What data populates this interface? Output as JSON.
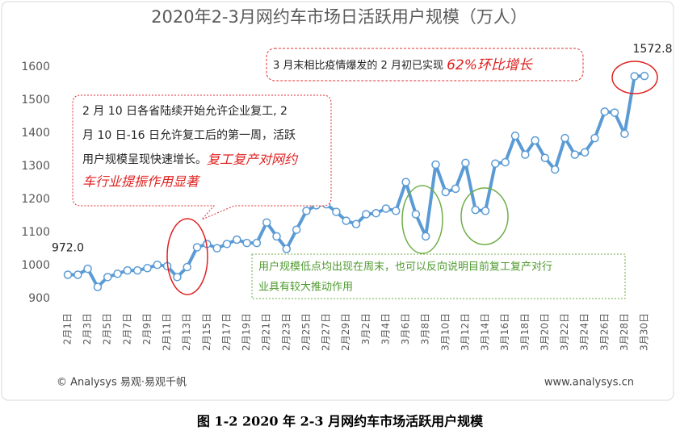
{
  "chart_data": {
    "type": "line",
    "title": "2020年2-3月网约车市场日活跃用户规模（万人）",
    "categories": [
      "2月1日",
      null,
      "2月3日",
      null,
      "2月5日",
      null,
      "2月7日",
      null,
      "2月9日",
      null,
      "2月11日",
      null,
      "2月13日",
      null,
      "2月15日",
      null,
      "2月17日",
      null,
      "2月19日",
      null,
      "2月21日",
      null,
      "2月23日",
      null,
      "2月25日",
      null,
      "2月27日",
      null,
      "2月29日",
      null,
      "3月2日",
      null,
      "3月4日",
      null,
      "3月6日",
      null,
      "3月8日",
      null,
      "3月10日",
      null,
      "3月12日",
      null,
      "3月14日",
      null,
      "3月16日",
      null,
      "3月18日",
      null,
      "3月20日",
      null,
      "3月22日",
      null,
      "3月24日",
      null,
      "3月26日",
      null,
      "3月28日",
      null,
      "3月30日"
    ],
    "series": [
      {
        "name": "日活跃用户规模",
        "color": "#5b9bd5",
        "values": [
          972.0,
          972,
          990,
          935,
          965,
          975,
          985,
          985,
          992,
          1002,
          998,
          965,
          995,
          1055,
          1065,
          1052,
          1065,
          1078,
          1068,
          1068,
          1130,
          1088,
          1050,
          1108,
          1165,
          1182,
          1185,
          1162,
          1135,
          1125,
          1155,
          1158,
          1172,
          1165,
          1252,
          1155,
          1088,
          1305,
          1222,
          1232,
          1310,
          1168,
          1165,
          1308,
          1312,
          1392,
          1335,
          1378,
          1325,
          1290,
          1385,
          1335,
          1342,
          1385,
          1465,
          1462,
          1398,
          1572,
          1572.8
        ],
        "value_labels": [
          "972.0",
          null,
          null,
          null,
          null,
          null,
          null,
          null,
          null,
          null,
          null,
          null,
          null,
          null,
          null,
          null,
          null,
          null,
          null,
          null,
          null,
          null,
          null,
          null,
          null,
          null,
          null,
          null,
          null,
          null,
          null,
          null,
          null,
          null,
          null,
          null,
          null,
          null,
          null,
          null,
          null,
          null,
          null,
          null,
          null,
          null,
          null,
          null,
          null,
          null,
          null,
          null,
          null,
          null,
          null,
          null,
          null,
          null,
          "1572.8"
        ]
      }
    ],
    "ylim": [
      900,
      1650
    ],
    "yticks": [
      900,
      1000,
      1100,
      1200,
      1300,
      1400,
      1500,
      1600
    ],
    "grid": false,
    "annotations": {
      "top": {
        "text": "3 月末相比疫情爆发的 2 月初已实现 ",
        "highlight": "62%环比增长"
      },
      "left": {
        "lines": [
          "2 月  10  日各省陆续开始允许企业复工, 2",
          "月 10 日-16 日允许复工后的第一周，活跃",
          "用户规模呈现快速增长。"
        ],
        "highlight": [
          "复工复产对网约",
          "车行业提振作用显著"
        ]
      },
      "bottom": {
        "lines": [
          "用户规模低点均出现在周末，也可以反向说明目前复工复产对行",
          "业具有较大推动作用"
        ]
      }
    },
    "source": "© Analysys 易观·易观千帆",
    "website": "www.analysys.cn",
    "caption": "图 1-2  2020 年 2-3 月网约车市场活跃用户规模"
  }
}
